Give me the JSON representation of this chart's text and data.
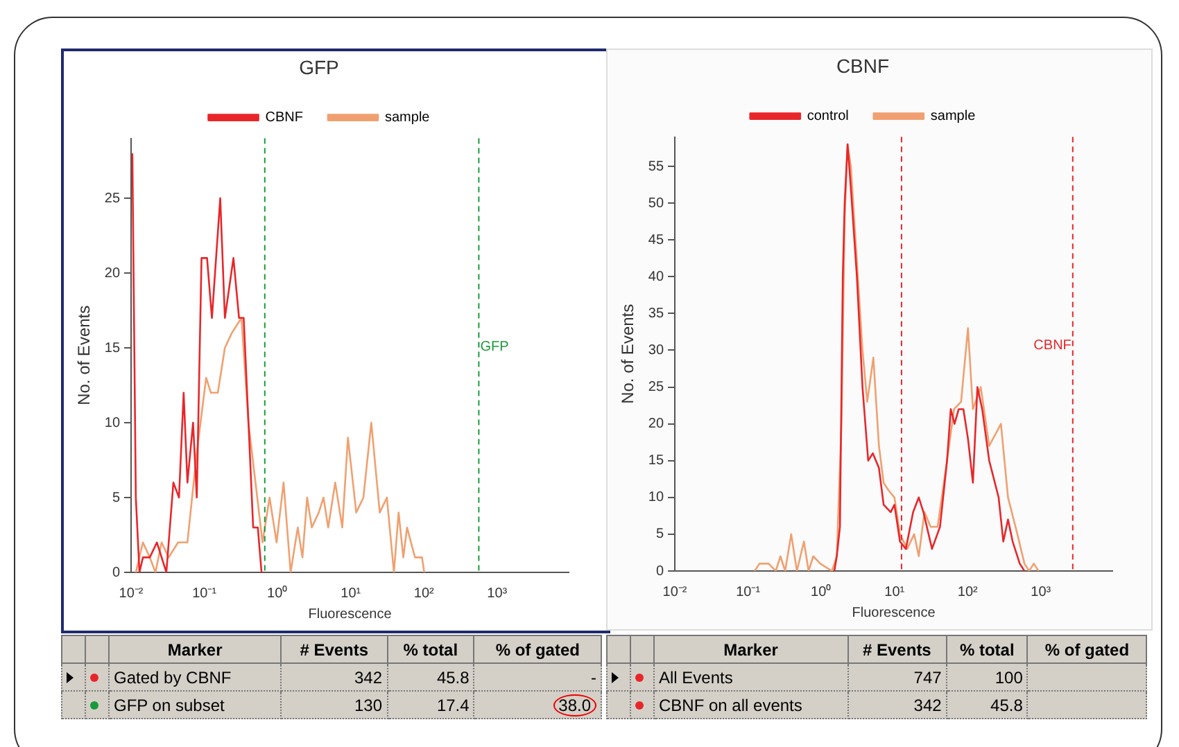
{
  "chart_data": [
    {
      "type": "line",
      "title": "GFP",
      "xlabel": "Fluorescence",
      "ylabel": "No. of Events",
      "log": "x",
      "legend": "top",
      "grid": false,
      "line_style": "solid",
      "xlim": [
        0.01,
        9500
      ],
      "ylim": [
        0,
        29
      ],
      "xticks": [
        {
          "value": 0.01,
          "label": "10⁻²"
        },
        {
          "value": 0.1,
          "label": "10⁻¹"
        },
        {
          "value": 1,
          "label": "10⁰"
        },
        {
          "value": 10,
          "label": "10¹"
        },
        {
          "value": 100,
          "label": "10²"
        },
        {
          "value": 1000,
          "label": "10³"
        }
      ],
      "yticks": [
        0,
        5,
        10,
        15,
        20,
        25
      ],
      "series": [
        {
          "name": "CBNF",
          "color": "#e8262a",
          "x": [
            0.0104,
            0.0116,
            0.013,
            0.0145,
            0.018,
            0.0225,
            0.0303,
            0.0378,
            0.0451,
            0.0522,
            0.0588,
            0.0702,
            0.0789,
            0.0916,
            0.109,
            0.127,
            0.165,
            0.191,
            0.25,
            0.298,
            0.345,
            0.401,
            0.465,
            0.538,
            0.605
          ],
          "values": [
            28,
            5,
            0,
            1,
            1,
            2,
            0,
            6,
            5,
            12,
            6,
            10,
            5,
            21,
            21,
            17,
            25,
            17,
            21,
            17,
            17,
            10,
            3,
            3,
            0
          ]
        },
        {
          "name": "sample",
          "color": "#f0a070",
          "x": [
            0.0116,
            0.0145,
            0.018,
            0.0215,
            0.0261,
            0.0326,
            0.0438,
            0.0588,
            0.0789,
            0.106,
            0.123,
            0.153,
            0.191,
            0.238,
            0.322,
            0.401,
            0.5,
            0.624,
            0.778,
            0.971,
            1.21,
            1.51,
            1.89,
            2.19,
            2.54,
            2.94,
            3.66,
            4.25,
            4.92,
            6.14,
            7.67,
            9.16,
            11.9,
            14.9,
            19.1,
            24.9,
            31.2,
            38.9,
            45.1,
            52.3,
            58.8,
            75.5,
            94.2,
            101
          ],
          "values": [
            0,
            2,
            1,
            0,
            2,
            1,
            2,
            2,
            8,
            13,
            12,
            12,
            15,
            16,
            17,
            10,
            6,
            2,
            5,
            2,
            6,
            0,
            3,
            1,
            5,
            3,
            4,
            5,
            3,
            6,
            3,
            9,
            4,
            5,
            10,
            4,
            5,
            0,
            4,
            1,
            3,
            1,
            1,
            0
          ]
        }
      ],
      "ref_lines": [
        {
          "axis": "x",
          "value": 0.67,
          "color": "#1a9a3a",
          "line_style": "dashed"
        },
        {
          "axis": "x",
          "value": 562,
          "label": "GFP",
          "color": "#1a9a3a",
          "line_style": "dashed"
        }
      ],
      "annotations": [
        "Marker",
        "# Events",
        "% total",
        "% of gated",
        "Gated by CBNF",
        "342",
        "45.8",
        "-",
        "GFP on subset",
        "130",
        "17.4",
        "38.0"
      ]
    },
    {
      "type": "line",
      "title": "CBNF",
      "xlabel": "Fluorescence",
      "ylabel": "No. of Events",
      "log": "x",
      "legend": "top",
      "grid": false,
      "line_style": "solid",
      "xlim": [
        0.01,
        9500
      ],
      "ylim": [
        0,
        59
      ],
      "xticks": [
        {
          "value": 0.01,
          "label": "10⁻²"
        },
        {
          "value": 0.1,
          "label": "10⁻¹"
        },
        {
          "value": 1,
          "label": "10⁰"
        },
        {
          "value": 10,
          "label": "10¹"
        },
        {
          "value": 100,
          "label": "10²"
        },
        {
          "value": 1000,
          "label": "10³"
        }
      ],
      "yticks": [
        0,
        5,
        10,
        15,
        20,
        25,
        30,
        35,
        40,
        45,
        50,
        55
      ],
      "series": [
        {
          "name": "control",
          "color": "#e8262a",
          "x": [
            1.51,
            1.63,
            1.8,
            1.97,
            2.09,
            2.29,
            2.54,
            3.07,
            3.66,
            4.38,
            5.07,
            6.14,
            7.12,
            8.89,
            10,
            11.9,
            14.3,
            18,
            21.5,
            24.9,
            32.6,
            41.9,
            52.3,
            58.8,
            66.2,
            75.5,
            87.5,
            101,
            118,
            136,
            158,
            197,
            265,
            307,
            356,
            412,
            515,
            597
          ],
          "values": [
            0,
            2,
            6,
            40,
            50,
            58,
            52,
            40,
            25,
            15,
            16,
            14,
            9,
            8,
            9,
            4,
            3,
            8,
            10,
            8,
            3,
            6,
            15,
            22,
            20,
            22,
            22,
            18,
            12,
            25,
            22,
            15,
            10,
            4,
            7,
            4,
            1,
            0
          ]
        },
        {
          "name": "sample",
          "color": "#f0a070",
          "x": [
            0.123,
            0.143,
            0.191,
            0.239,
            0.277,
            0.321,
            0.389,
            0.465,
            0.58,
            0.672,
            0.778,
            0.971,
            1.4,
            1.63,
            1.89,
            2.09,
            2.29,
            2.54,
            2.94,
            3.66,
            4.25,
            5.15,
            6.14,
            7.12,
            8.26,
            10,
            11.9,
            14.9,
            18.6,
            21.5,
            25.7,
            31.2,
            38.9,
            52.3,
            65.2,
            81.3,
            101,
            118,
            151,
            197,
            285,
            356,
            478,
            597,
            692,
            802,
            929
          ],
          "values": [
            0,
            1,
            1,
            0,
            2,
            0,
            5,
            0,
            4,
            0,
            2,
            1,
            0,
            2,
            20,
            48,
            58,
            55,
            45,
            30,
            23,
            29,
            17,
            12,
            11,
            10,
            5,
            3,
            5,
            2,
            8,
            6,
            6,
            15,
            22,
            23,
            33,
            22,
            25,
            17,
            20,
            10,
            5,
            1,
            0,
            1,
            0
          ]
        }
      ],
      "ref_lines": [
        {
          "axis": "x",
          "value": 12.5,
          "color": "#e8262a",
          "line_style": "dashed"
        },
        {
          "axis": "x",
          "value": 2730,
          "label": "CBNF",
          "color": "#e8262a",
          "line_style": "dashed"
        }
      ],
      "annotations": [
        "Marker",
        "# Events",
        "% total",
        "% of gated",
        "All Events",
        "747",
        "100",
        "CBNF on all events",
        "342",
        "45.8"
      ]
    }
  ]
}
